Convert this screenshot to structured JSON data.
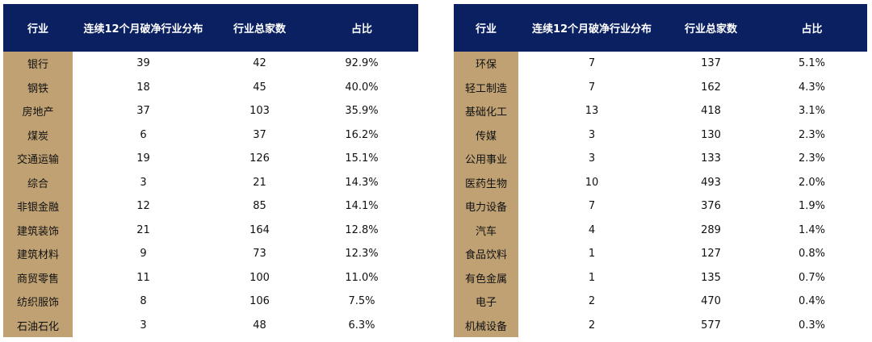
{
  "headers": [
    "行业",
    "连续12个月破净行业分布",
    "行业总家数",
    "占比"
  ],
  "left_table": [
    {
      "industry": "银行",
      "count": "39",
      "total": "42",
      "ratio": "92.9%"
    },
    {
      "industry": "钢铁",
      "count": "18",
      "total": "45",
      "ratio": "40.0%"
    },
    {
      "industry": "房地产",
      "count": "37",
      "total": "103",
      "ratio": "35.9%"
    },
    {
      "industry": "煤炭",
      "count": "6",
      "total": "37",
      "ratio": "16.2%"
    },
    {
      "industry": "交通运输",
      "count": "19",
      "total": "126",
      "ratio": "15.1%"
    },
    {
      "industry": "综合",
      "count": "3",
      "total": "21",
      "ratio": "14.3%"
    },
    {
      "industry": "非银金融",
      "count": "12",
      "total": "85",
      "ratio": "14.1%"
    },
    {
      "industry": "建筑装饰",
      "count": "21",
      "total": "164",
      "ratio": "12.8%"
    },
    {
      "industry": "建筑材料",
      "count": "9",
      "total": "73",
      "ratio": "12.3%"
    },
    {
      "industry": "商贸零售",
      "count": "11",
      "total": "100",
      "ratio": "11.0%"
    },
    {
      "industry": "纺织服饰",
      "count": "8",
      "total": "106",
      "ratio": "7.5%"
    },
    {
      "industry": "石油石化",
      "count": "3",
      "total": "48",
      "ratio": "6.3%"
    }
  ],
  "right_table": [
    {
      "industry": "环保",
      "count": "7",
      "total": "137",
      "ratio": "5.1%"
    },
    {
      "industry": "轻工制造",
      "count": "7",
      "total": "162",
      "ratio": "4.3%"
    },
    {
      "industry": "基础化工",
      "count": "13",
      "total": "418",
      "ratio": "3.1%"
    },
    {
      "industry": "传媒",
      "count": "3",
      "total": "130",
      "ratio": "2.3%"
    },
    {
      "industry": "公用事业",
      "count": "3",
      "total": "133",
      "ratio": "2.3%"
    },
    {
      "industry": "医药生物",
      "count": "10",
      "total": "493",
      "ratio": "2.0%"
    },
    {
      "industry": "电力设备",
      "count": "7",
      "total": "376",
      "ratio": "1.9%"
    },
    {
      "industry": "汽车",
      "count": "4",
      "total": "289",
      "ratio": "1.4%"
    },
    {
      "industry": "食品饮料",
      "count": "1",
      "total": "127",
      "ratio": "0.8%"
    },
    {
      "industry": "有色金属",
      "count": "1",
      "total": "135",
      "ratio": "0.7%"
    },
    {
      "industry": "电子",
      "count": "2",
      "total": "470",
      "ratio": "0.4%"
    },
    {
      "industry": "机械设备",
      "count": "2",
      "total": "577",
      "ratio": "0.3%"
    }
  ],
  "colors": {
    "header_bg": "#0b2060",
    "industry_bg": "#bfa173"
  }
}
